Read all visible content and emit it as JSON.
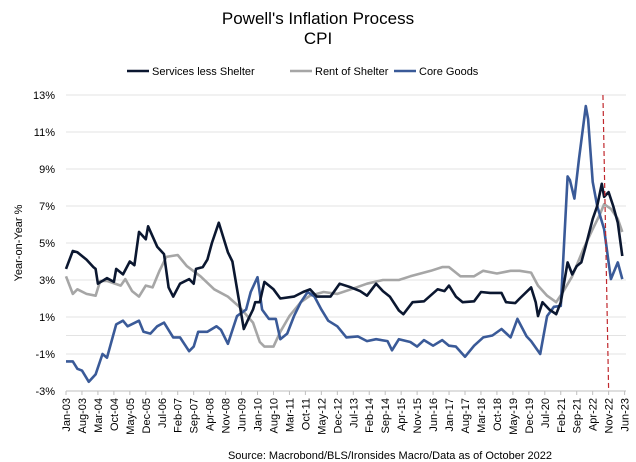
{
  "chart_data": {
    "type": "line",
    "title": "Powell's Inflation Process",
    "subtitle": "CPI",
    "xlabel": "",
    "ylabel": "Year-on-Year %",
    "source": "Source: Macrobond/BLS/Ironsides Macro/Data as of October 2022",
    "x_unit": "months since Jan-03",
    "xlim": [
      0,
      245
    ],
    "ylim": [
      -3,
      13
    ],
    "y_ticks": [
      13,
      11,
      9,
      7,
      5,
      3,
      1,
      -1,
      -3
    ],
    "y_tick_labels": [
      "13%",
      "11%",
      "9%",
      "7%",
      "5%",
      "3%",
      "1%",
      "-1%",
      "-3%"
    ],
    "x_tick_labels": [
      "Jan-03",
      "Aug-03",
      "Mar-04",
      "Oct-04",
      "May-05",
      "Dec-05",
      "Jul-06",
      "Feb-07",
      "Sep-07",
      "Apr-08",
      "Nov-08",
      "Jun-09",
      "Jan-10",
      "Aug-10",
      "Mar-11",
      "Oct-11",
      "May-12",
      "Dec-12",
      "Jul-13",
      "Feb-14",
      "Sep-14",
      "Apr-15",
      "Nov-15",
      "Jun-16",
      "Jan-17",
      "Aug-17",
      "Mar-18",
      "Oct-18",
      "May-19",
      "Dec-19",
      "Jul-20",
      "Feb-21",
      "Sep-21",
      "Apr-22",
      "Nov-22",
      "Jun-23"
    ],
    "x_tick_step_months": 7,
    "grid": true,
    "legend_position": "top-center",
    "annotation": {
      "type": "vertical-dashed-line",
      "color": "#c0282d",
      "x_top": 235.5,
      "x_bottom": 238
    },
    "series": [
      {
        "name": "Services less Shelter",
        "color": "#0b1730",
        "points": [
          [
            0,
            3.6
          ],
          [
            3,
            4.57
          ],
          [
            5,
            4.5
          ],
          [
            9,
            4.1
          ],
          [
            12,
            3.7
          ],
          [
            13,
            3.6
          ],
          [
            14,
            2.8
          ],
          [
            18,
            3.1
          ],
          [
            21,
            2.9
          ],
          [
            22,
            3.6
          ],
          [
            25,
            3.3
          ],
          [
            28,
            4.0
          ],
          [
            30,
            3.8
          ],
          [
            32,
            5.6
          ],
          [
            35,
            5.2
          ],
          [
            36,
            5.9
          ],
          [
            40,
            4.8
          ],
          [
            43,
            4.4
          ],
          [
            45,
            2.6
          ],
          [
            47,
            2.1
          ],
          [
            50,
            2.8
          ],
          [
            54,
            3.05
          ],
          [
            56,
            2.8
          ],
          [
            57,
            3.6
          ],
          [
            60,
            3.7
          ],
          [
            62,
            4.1
          ],
          [
            64,
            5.0
          ],
          [
            67,
            6.1
          ],
          [
            71,
            4.5
          ],
          [
            73,
            4.0
          ],
          [
            78,
            0.35
          ],
          [
            80,
            0.9
          ],
          [
            82,
            1.4
          ],
          [
            83,
            1.8
          ],
          [
            85,
            1.8
          ],
          [
            87,
            2.9
          ],
          [
            91,
            2.5
          ],
          [
            94,
            2.0
          ],
          [
            100,
            2.1
          ],
          [
            104,
            2.35
          ],
          [
            107,
            2.5
          ],
          [
            110,
            2.1
          ],
          [
            116,
            2.1
          ],
          [
            120,
            2.8
          ],
          [
            125,
            2.6
          ],
          [
            129,
            2.4
          ],
          [
            132,
            2.15
          ],
          [
            136,
            2.8
          ],
          [
            139,
            2.4
          ],
          [
            142,
            2.1
          ],
          [
            146,
            1.35
          ],
          [
            148,
            1.15
          ],
          [
            152,
            1.8
          ],
          [
            157,
            1.85
          ],
          [
            163,
            2.5
          ],
          [
            166,
            2.4
          ],
          [
            168,
            2.7
          ],
          [
            171,
            2.1
          ],
          [
            174,
            1.8
          ],
          [
            179,
            1.85
          ],
          [
            182,
            2.35
          ],
          [
            186,
            2.3
          ],
          [
            191,
            2.3
          ],
          [
            193,
            1.8
          ],
          [
            197,
            1.75
          ],
          [
            199,
            2.0
          ],
          [
            204,
            2.6
          ],
          [
            206,
            1.8
          ],
          [
            207,
            1.05
          ],
          [
            209,
            1.8
          ],
          [
            212,
            1.4
          ],
          [
            215,
            1.15
          ],
          [
            217,
            1.8
          ],
          [
            220,
            3.95
          ],
          [
            222,
            3.3
          ],
          [
            224,
            3.75
          ],
          [
            226,
            3.95
          ],
          [
            228,
            4.85
          ],
          [
            231,
            6.3
          ],
          [
            233,
            7.0
          ],
          [
            235,
            8.2
          ],
          [
            236,
            7.5
          ],
          [
            238,
            7.75
          ],
          [
            240,
            7.0
          ],
          [
            242,
            6.1
          ],
          [
            244,
            4.3
          ]
        ]
      },
      {
        "name": "Rent of Shelter",
        "color": "#a6a6a6",
        "points": [
          [
            0,
            3.2
          ],
          [
            3,
            2.25
          ],
          [
            5,
            2.5
          ],
          [
            9,
            2.25
          ],
          [
            13,
            2.15
          ],
          [
            15,
            2.95
          ],
          [
            18,
            2.95
          ],
          [
            24,
            2.7
          ],
          [
            26,
            3.05
          ],
          [
            29,
            2.4
          ],
          [
            32,
            2.1
          ],
          [
            35,
            2.7
          ],
          [
            38,
            2.6
          ],
          [
            41,
            3.5
          ],
          [
            44,
            4.25
          ],
          [
            49,
            4.35
          ],
          [
            53,
            3.75
          ],
          [
            59,
            3.2
          ],
          [
            65,
            2.5
          ],
          [
            71,
            2.1
          ],
          [
            76,
            1.55
          ],
          [
            82,
            0.7
          ],
          [
            85,
            -0.35
          ],
          [
            87,
            -0.6
          ],
          [
            91,
            -0.6
          ],
          [
            94,
            0.2
          ],
          [
            98,
            1.05
          ],
          [
            103,
            1.8
          ],
          [
            107,
            2.15
          ],
          [
            113,
            2.35
          ],
          [
            119,
            2.25
          ],
          [
            125,
            2.5
          ],
          [
            132,
            2.8
          ],
          [
            139,
            3.0
          ],
          [
            146,
            3.0
          ],
          [
            151,
            3.2
          ],
          [
            160,
            3.5
          ],
          [
            165,
            3.7
          ],
          [
            168,
            3.7
          ],
          [
            173,
            3.2
          ],
          [
            179,
            3.2
          ],
          [
            183,
            3.5
          ],
          [
            189,
            3.35
          ],
          [
            195,
            3.5
          ],
          [
            199,
            3.5
          ],
          [
            204,
            3.4
          ],
          [
            207,
            2.7
          ],
          [
            211,
            2.15
          ],
          [
            215,
            1.8
          ],
          [
            218,
            2.35
          ],
          [
            222,
            3.2
          ],
          [
            227,
            4.7
          ],
          [
            231,
            5.75
          ],
          [
            234,
            6.5
          ],
          [
            236,
            7.1
          ],
          [
            239,
            6.85
          ],
          [
            242,
            6.3
          ],
          [
            244,
            5.6
          ]
        ]
      },
      {
        "name": "Core Goods",
        "color": "#3a5a98",
        "points": [
          [
            0,
            -1.4
          ],
          [
            3,
            -1.4
          ],
          [
            5,
            -1.8
          ],
          [
            7,
            -1.9
          ],
          [
            10,
            -2.5
          ],
          [
            13,
            -2.1
          ],
          [
            16,
            -1.0
          ],
          [
            18,
            -1.2
          ],
          [
            22,
            0.6
          ],
          [
            25,
            0.8
          ],
          [
            27,
            0.5
          ],
          [
            32,
            0.8
          ],
          [
            34,
            0.2
          ],
          [
            37,
            0.1
          ],
          [
            40,
            0.5
          ],
          [
            43,
            0.7
          ],
          [
            47,
            -0.1
          ],
          [
            50,
            -0.1
          ],
          [
            54,
            -0.85
          ],
          [
            56,
            -0.6
          ],
          [
            58,
            0.2
          ],
          [
            62,
            0.2
          ],
          [
            66,
            0.5
          ],
          [
            68,
            0.3
          ],
          [
            71,
            -0.45
          ],
          [
            75,
            1.05
          ],
          [
            79,
            1.4
          ],
          [
            81,
            2.35
          ],
          [
            84,
            3.15
          ],
          [
            86,
            1.4
          ],
          [
            89,
            0.9
          ],
          [
            92,
            0.9
          ],
          [
            94,
            -0.2
          ],
          [
            97,
            0.1
          ],
          [
            100,
            1.05
          ],
          [
            103,
            1.8
          ],
          [
            106,
            2.35
          ],
          [
            109,
            2.1
          ],
          [
            112,
            1.4
          ],
          [
            115,
            0.8
          ],
          [
            119,
            0.5
          ],
          [
            123,
            -0.1
          ],
          [
            128,
            -0.05
          ],
          [
            132,
            -0.3
          ],
          [
            136,
            -0.2
          ],
          [
            141,
            -0.3
          ],
          [
            143,
            -0.8
          ],
          [
            146,
            -0.2
          ],
          [
            151,
            -0.35
          ],
          [
            154,
            -0.6
          ],
          [
            157,
            -0.25
          ],
          [
            161,
            -0.55
          ],
          [
            165,
            -0.25
          ],
          [
            168,
            -0.55
          ],
          [
            171,
            -0.6
          ],
          [
            175,
            -1.15
          ],
          [
            179,
            -0.55
          ],
          [
            183,
            -0.1
          ],
          [
            187,
            0.0
          ],
          [
            191,
            0.35
          ],
          [
            195,
            -0.1
          ],
          [
            198,
            0.9
          ],
          [
            202,
            -0.05
          ],
          [
            204,
            -0.3
          ],
          [
            208,
            -1.0
          ],
          [
            211,
            1.05
          ],
          [
            214,
            1.55
          ],
          [
            217,
            1.6
          ],
          [
            220,
            8.6
          ],
          [
            221,
            8.4
          ],
          [
            223,
            7.4
          ],
          [
            225,
            9.55
          ],
          [
            228,
            12.4
          ],
          [
            229,
            11.7
          ],
          [
            231,
            8.3
          ],
          [
            233,
            7.0
          ],
          [
            236,
            5.75
          ],
          [
            238,
            3.95
          ],
          [
            239,
            3.05
          ],
          [
            242,
            3.95
          ],
          [
            244,
            3.05
          ]
        ]
      }
    ]
  }
}
